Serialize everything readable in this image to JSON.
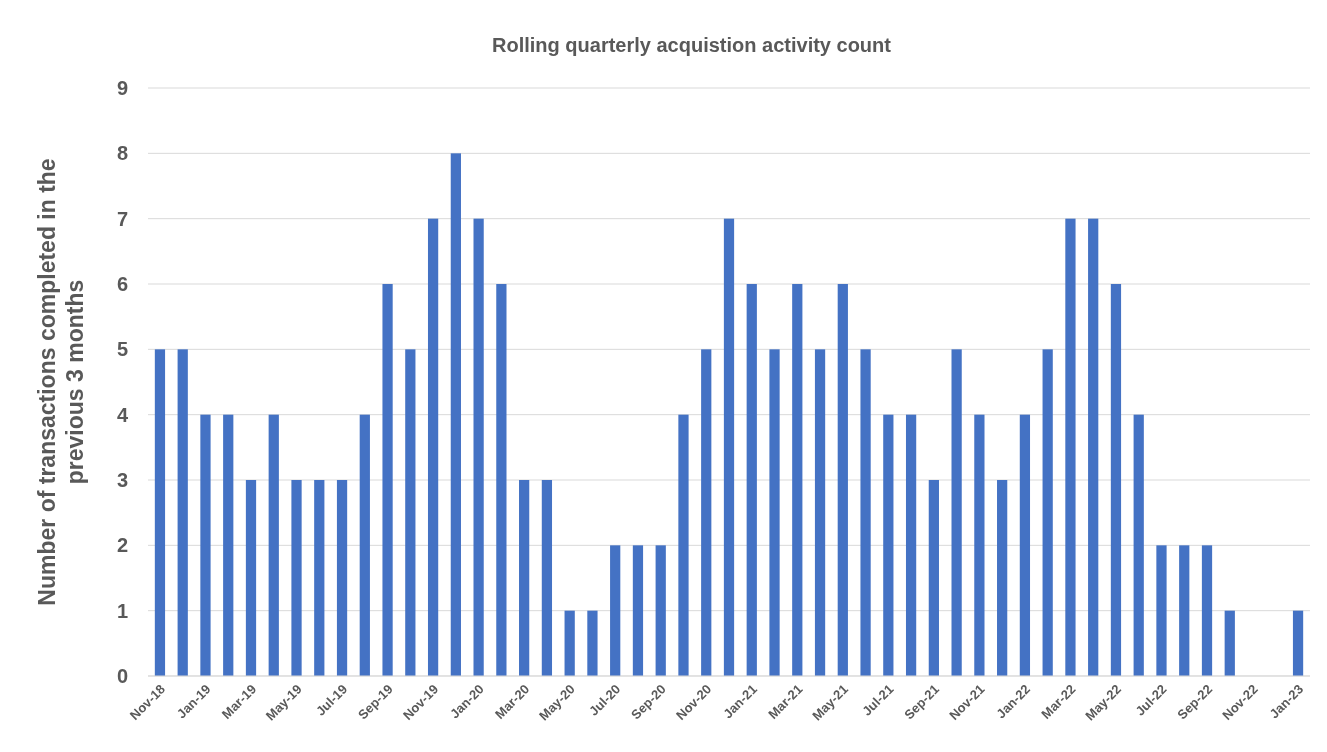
{
  "chart_data": {
    "type": "bar",
    "title": "Rolling quarterly acquistion activity count",
    "ylabel": "Number of transactions completed in the previous 3 months",
    "categories": [
      "Nov-18",
      null,
      "Jan-19",
      null,
      "Mar-19",
      null,
      "May-19",
      null,
      "Jul-19",
      null,
      "Sep-19",
      null,
      "Nov-19",
      null,
      "Jan-20",
      null,
      "Mar-20",
      null,
      "May-20",
      null,
      "Jul-20",
      null,
      "Sep-20",
      null,
      "Nov-20",
      null,
      "Jan-21",
      null,
      "Mar-21",
      null,
      "May-21",
      null,
      "Jul-21",
      null,
      "Sep-21",
      null,
      "Nov-21",
      null,
      "Jan-22",
      null,
      "Mar-22",
      null,
      "May-22",
      null,
      "Jul-22",
      null,
      "Sep-22",
      null,
      "Nov-22",
      null,
      "Jan-23"
    ],
    "values": [
      5,
      5,
      4,
      4,
      3,
      4,
      3,
      3,
      3,
      4,
      6,
      5,
      7,
      8,
      7,
      6,
      3,
      3,
      1,
      1,
      2,
      2,
      2,
      4,
      5,
      7,
      6,
      5,
      6,
      5,
      6,
      5,
      4,
      4,
      3,
      5,
      4,
      3,
      4,
      5,
      7,
      7,
      6,
      4,
      2,
      2,
      2,
      1,
      0,
      0,
      1
    ],
    "color": "#4472c4",
    "ylim": [
      0,
      9
    ],
    "yticks": [
      0,
      1,
      2,
      3,
      4,
      5,
      6,
      7,
      8,
      9
    ],
    "grid": "y"
  }
}
